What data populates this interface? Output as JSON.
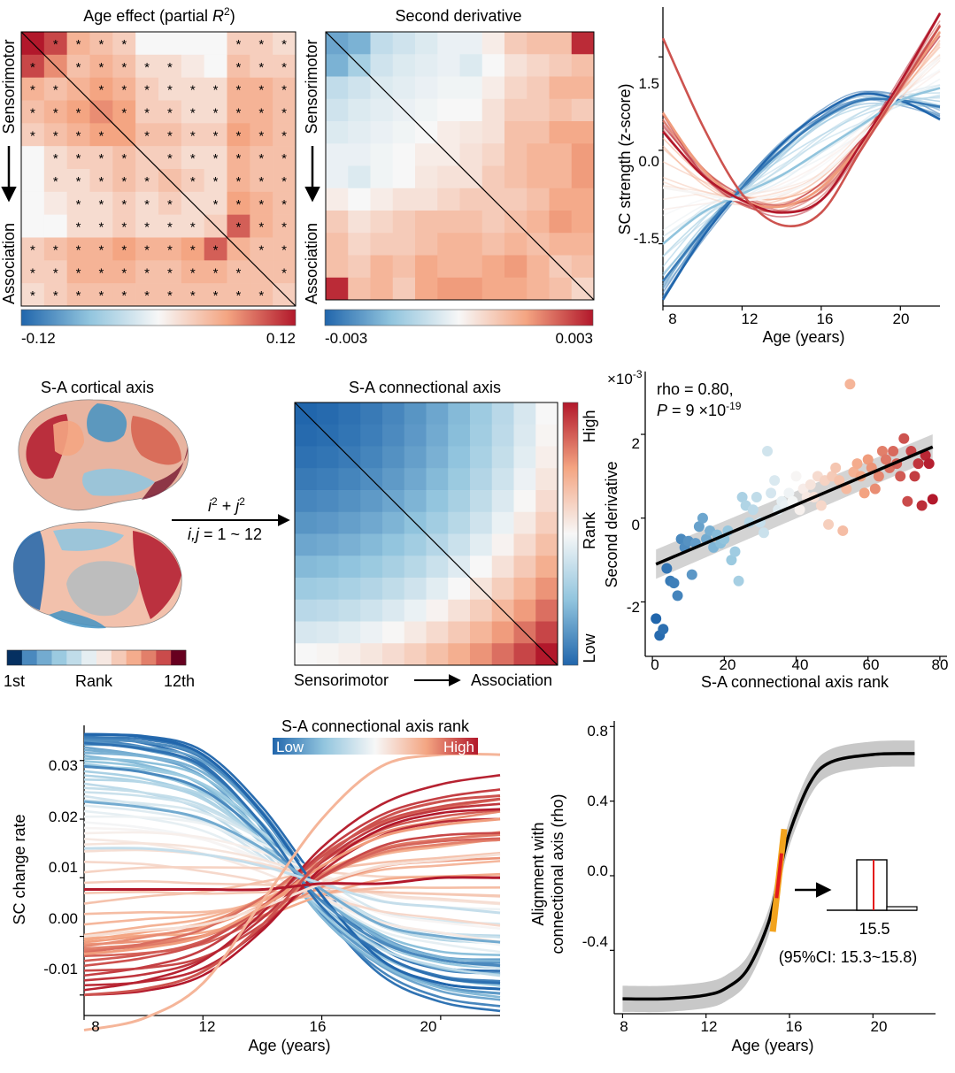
{
  "colors": {
    "blue_end": "#2166ac",
    "white_mid": "#f7f7f7",
    "red_end": "#b2182b",
    "dark_red": "#67001f",
    "fit_black": "#000000",
    "ci_gray": "#c8c8c8",
    "marker_red": "#e31a1c",
    "marker_orange": "#f2a31d"
  },
  "panel_a": {
    "title_prefix": "Age effect (partial ",
    "title_var": "R",
    "title_sup": "2",
    "title_suffix": ")",
    "row_label_top": "Sensorimotor",
    "row_label_bottom": "Association",
    "star": "*",
    "cbar_min": "-0.12",
    "cbar_max": "0.12"
  },
  "panel_b": {
    "title": "Second derivative",
    "row_label_top": "Sensorimotor",
    "row_label_bottom": "Association",
    "cbar_min": "-0.003",
    "cbar_max": "0.003"
  },
  "panel_c": {
    "ylabel": "SC strength (z-score)",
    "xlabel": "Age (years)",
    "yticks": [
      "1.5",
      "0.0",
      "-1.5"
    ],
    "xticks": [
      "8",
      "12",
      "16",
      "20"
    ]
  },
  "panel_d": {
    "title": "S-A cortical axis",
    "rank_first": "1st",
    "rank_mid": "Rank",
    "rank_last": "12th",
    "formula_i": "i",
    "formula_sup": "2",
    "formula_plus": " + ",
    "formula_j": "j",
    "formula_range_prefix": "i,j",
    "formula_range_suffix": " = 1 ~ 12"
  },
  "panel_e": {
    "title": "S-A connectional axis",
    "cbar_high": "High",
    "cbar_mid": "Rank",
    "cbar_low": "Low",
    "xlabel_left": "Sensorimotor",
    "xlabel_right": "Association"
  },
  "panel_f": {
    "exponent_base": "×10",
    "exponent_power": "-3",
    "rho_text": "rho = 0.80,",
    "p_var": "P",
    "p_value": " = 9 ×10",
    "p_exp": "-19",
    "ylabel": "Second derivative",
    "xlabel": "S-A connectional axis rank",
    "yticks": [
      "2",
      "0",
      "-2"
    ],
    "xticks": [
      "0",
      "20",
      "40",
      "60",
      "80"
    ]
  },
  "panel_g": {
    "legend_title": "S-A connectional axis rank",
    "legend_low": "Low",
    "legend_high": "High",
    "ylabel": "SC change rate",
    "xlabel": "Age (years)",
    "yticks": [
      "0.03",
      "0.02",
      "0.01",
      "0.00",
      "-0.01"
    ],
    "xticks": [
      "8",
      "12",
      "16",
      "20"
    ]
  },
  "panel_h": {
    "ylabel_line1": "Alignment with",
    "ylabel_line2": "connectional axis (rho)",
    "xlabel": "Age (years)",
    "yticks": [
      "0.8",
      "0.4",
      "0.0",
      "-0.4"
    ],
    "xticks": [
      "8",
      "12",
      "16",
      "20"
    ],
    "inset_value": "15.5",
    "inset_ci": "(95%CI: 15.3~15.8)"
  },
  "chart_data": [
    {
      "type": "heatmap",
      "panel": "age_effect",
      "colorbar_range": [
        -0.12,
        0.12
      ],
      "rows": 12,
      "cols": 12,
      "lower_triangle_partial_r2": [
        [
          0.12
        ],
        [
          0.1,
          0.07
        ],
        [
          0.05,
          0.04,
          0.05
        ],
        [
          0.04,
          0.05,
          0.06,
          0.07
        ],
        [
          0.03,
          0.04,
          0.05,
          0.06,
          0.06
        ],
        [
          0.0,
          0.02,
          0.03,
          0.03,
          0.04,
          0.03
        ],
        [
          0.0,
          0.02,
          0.02,
          0.03,
          0.04,
          0.03,
          0.04
        ],
        [
          0.0,
          0.01,
          0.02,
          0.02,
          0.03,
          0.02,
          0.03,
          0.02
        ],
        [
          0.0,
          0.0,
          0.02,
          0.02,
          0.03,
          0.02,
          0.02,
          0.02,
          0.03
        ],
        [
          0.03,
          0.04,
          0.05,
          0.05,
          0.06,
          0.05,
          0.05,
          0.06,
          0.09,
          0.05
        ],
        [
          0.03,
          0.03,
          0.05,
          0.05,
          0.05,
          0.04,
          0.04,
          0.05,
          0.05,
          0.04,
          0.04
        ],
        [
          0.02,
          0.03,
          0.04,
          0.04,
          0.04,
          0.04,
          0.04,
          0.04,
          0.04,
          0.04,
          0.04,
          0.03
        ]
      ]
    },
    {
      "type": "heatmap",
      "panel": "second_derivative",
      "colorbar_range": [
        -0.003,
        0.003
      ],
      "rows": 12,
      "cols": 12,
      "lower_triangle_values": [
        [
          -0.002
        ],
        [
          -0.0018,
          -0.0012
        ],
        [
          -0.0008,
          -0.0006,
          -0.0004
        ],
        [
          -0.0006,
          -0.0004,
          -0.0003,
          -0.0002
        ],
        [
          -0.0004,
          -0.0003,
          -0.0002,
          -0.0001,
          0.0
        ],
        [
          -0.0002,
          -0.0002,
          -0.0001,
          0.0,
          0.0002,
          0.0002
        ],
        [
          -0.0002,
          -0.0004,
          -0.0001,
          0.0,
          0.0003,
          0.0004,
          0.0004
        ],
        [
          0.0002,
          0.0,
          0.0002,
          0.0004,
          0.0004,
          0.0006,
          0.0008,
          0.0008
        ],
        [
          0.0008,
          0.0004,
          0.0006,
          0.0008,
          0.001,
          0.001,
          0.001,
          0.0008,
          0.001
        ],
        [
          0.001,
          0.0006,
          0.0008,
          0.0008,
          0.001,
          0.0012,
          0.0012,
          0.001,
          0.0012,
          0.001
        ],
        [
          0.001,
          0.0008,
          0.0012,
          0.001,
          0.0014,
          0.0012,
          0.0012,
          0.0014,
          0.0016,
          0.0012,
          0.0008
        ],
        [
          0.0028,
          0.001,
          0.0012,
          0.0008,
          0.0014,
          0.0016,
          0.0016,
          0.0014,
          0.0014,
          0.0012,
          0.001,
          0.0006
        ]
      ]
    },
    {
      "type": "line",
      "panel": "sc_strength_trajectories",
      "xlabel": "Age (years)",
      "ylabel": "SC strength (z-score)",
      "xlim": [
        8,
        22
      ],
      "ylim": [
        -2.5,
        2.3
      ],
      "x": [
        8,
        10,
        12,
        14,
        16,
        18,
        20,
        22
      ],
      "series": [
        {
          "rank": 1,
          "values": [
            -2.4,
            -1.4,
            -0.6,
            0.1,
            0.6,
            0.9,
            0.8,
            0.5
          ]
        },
        {
          "rank": 5,
          "values": [
            -2.1,
            -1.3,
            -0.6,
            0.0,
            0.5,
            0.8,
            0.8,
            0.7
          ]
        },
        {
          "rank": 20,
          "values": [
            -1.5,
            -1.0,
            -0.7,
            -0.4,
            0.0,
            0.4,
            0.8,
            1.0
          ]
        },
        {
          "rank": 40,
          "values": [
            -0.6,
            -0.7,
            -0.8,
            -0.7,
            -0.4,
            0.2,
            0.9,
            1.5
          ]
        },
        {
          "rank": 60,
          "values": [
            0.6,
            -0.3,
            -0.8,
            -0.9,
            -0.6,
            0.1,
            1.0,
            1.9
          ]
        },
        {
          "rank": 78,
          "values": [
            0.3,
            -0.4,
            -0.8,
            -1.0,
            -0.8,
            0.1,
            1.1,
            2.2
          ]
        },
        {
          "rank": 70,
          "values": [
            1.8,
            0.4,
            -0.7,
            -1.2,
            -1.0,
            0.0,
            1.0,
            2.0
          ]
        }
      ]
    },
    {
      "type": "heatmap",
      "panel": "sa_connectional_axis",
      "rows": 12,
      "cols": 12,
      "values_formula": "i^2 + j^2, i,j = 1~12 (rank)"
    },
    {
      "type": "scatter",
      "panel": "second_derivative_vs_rank",
      "xlabel": "S-A connectional axis rank",
      "ylabel": "Second derivative",
      "xlim": [
        -2,
        82
      ],
      "ylim": [
        -3.3,
        3.5
      ],
      "y_scale": "×10^-3",
      "rho": 0.8,
      "p": "9e-19",
      "fit_line": {
        "x": [
          1,
          78
        ],
        "y": [
          -1.1,
          1.7
        ]
      },
      "points": [
        [
          1,
          -2.4
        ],
        [
          2,
          -2.8
        ],
        [
          3,
          -2.65
        ],
        [
          4,
          -1.2
        ],
        [
          5,
          -1.5
        ],
        [
          6,
          -1.55
        ],
        [
          7,
          -1.85
        ],
        [
          8,
          -0.5
        ],
        [
          9,
          -0.7
        ],
        [
          10,
          -0.55
        ],
        [
          11,
          -1.35
        ],
        [
          12,
          -0.6
        ],
        [
          13,
          -0.2
        ],
        [
          14,
          0.0
        ],
        [
          15,
          -0.5
        ],
        [
          16,
          -0.3
        ],
        [
          17,
          -0.7
        ],
        [
          18,
          -0.4
        ],
        [
          19,
          -0.6
        ],
        [
          20,
          -0.5
        ],
        [
          21,
          -0.3
        ],
        [
          22,
          -1.0
        ],
        [
          23,
          -0.8
        ],
        [
          24,
          -1.5
        ],
        [
          25,
          0.5
        ],
        [
          26,
          0.3
        ],
        [
          27,
          -0.1
        ],
        [
          28,
          0.2
        ],
        [
          29,
          0.5
        ],
        [
          30,
          -0.1
        ],
        [
          31,
          -0.35
        ],
        [
          32,
          1.6
        ],
        [
          33,
          0.6
        ],
        [
          34,
          0.9
        ],
        [
          35,
          0.2
        ],
        [
          36,
          0.4
        ],
        [
          37,
          0.3
        ],
        [
          38,
          0.6
        ],
        [
          39,
          0.4
        ],
        [
          40,
          1.0
        ],
        [
          41,
          0.2
        ],
        [
          42,
          0.7
        ],
        [
          43,
          0.5
        ],
        [
          44,
          0.8
        ],
        [
          45,
          0.5
        ],
        [
          46,
          1.0
        ],
        [
          47,
          0.3
        ],
        [
          48,
          0.9
        ],
        [
          49,
          -0.15
        ],
        [
          50,
          1.0
        ],
        [
          51,
          1.2
        ],
        [
          52,
          0.9
        ],
        [
          53,
          -0.3
        ],
        [
          54,
          0.7
        ],
        [
          55,
          3.2
        ],
        [
          56,
          1.1
        ],
        [
          57,
          1.3
        ],
        [
          58,
          1.0
        ],
        [
          59,
          0.6
        ],
        [
          60,
          1.4
        ],
        [
          61,
          1.2
        ],
        [
          62,
          0.7
        ],
        [
          63,
          1.0
        ],
        [
          64,
          1.6
        ],
        [
          65,
          1.4
        ],
        [
          66,
          1.2
        ],
        [
          67,
          1.6
        ],
        [
          68,
          1.3
        ],
        [
          69,
          1.0
        ],
        [
          70,
          1.9
        ],
        [
          71,
          0.4
        ],
        [
          72,
          1.6
        ],
        [
          73,
          1.0
        ],
        [
          74,
          1.3
        ],
        [
          75,
          0.3
        ],
        [
          76,
          1.5
        ],
        [
          77,
          1.3
        ],
        [
          78,
          0.45
        ]
      ]
    },
    {
      "type": "line",
      "panel": "sc_change_rate",
      "xlabel": "Age (years)",
      "ylabel": "SC change rate",
      "xlim": [
        8,
        22
      ],
      "ylim": [
        -0.0135,
        0.036
      ],
      "x": [
        8,
        10,
        12,
        14,
        16,
        18,
        20,
        22
      ],
      "series": [
        {
          "rank": 1,
          "values": [
            0.0345,
            0.034,
            0.031,
            0.021,
            0.007,
            -0.004,
            -0.008,
            -0.009
          ]
        },
        {
          "rank": 3,
          "values": [
            0.033,
            0.032,
            0.029,
            0.019,
            0.005,
            -0.003,
            -0.007,
            -0.008
          ]
        },
        {
          "rank": 8,
          "values": [
            0.029,
            0.028,
            0.025,
            0.017,
            0.006,
            -0.001,
            -0.004,
            -0.005
          ]
        },
        {
          "rank": 15,
          "values": [
            0.023,
            0.022,
            0.02,
            0.015,
            0.008,
            0.002,
            0.0,
            -0.001
          ]
        },
        {
          "rank": 30,
          "values": [
            0.015,
            0.015,
            0.014,
            0.012,
            0.009,
            0.006,
            0.005,
            0.004
          ]
        },
        {
          "rank": 45,
          "values": [
            0.0,
            0.001,
            0.002,
            0.005,
            0.009,
            0.012,
            0.013,
            0.014
          ]
        },
        {
          "rank": 60,
          "values": [
            -0.003,
            -0.002,
            0.0,
            0.005,
            0.012,
            0.017,
            0.019,
            0.02
          ]
        },
        {
          "rank": 70,
          "values": [
            -0.01,
            -0.009,
            -0.006,
            0.002,
            0.013,
            0.02,
            0.023,
            0.024
          ]
        },
        {
          "rank": 78,
          "values": [
            0.008,
            0.008,
            0.008,
            0.008,
            0.009,
            0.009,
            0.01,
            0.01
          ]
        },
        {
          "rank": 55,
          "values": [
            -0.016,
            -0.014,
            -0.008,
            0.006,
            0.02,
            0.029,
            0.031,
            0.031
          ]
        }
      ]
    },
    {
      "type": "line",
      "panel": "alignment_with_connectional_axis",
      "xlabel": "Age (years)",
      "ylabel": "Alignment with connectional axis (rho)",
      "xlim": [
        7.6,
        23.0
      ],
      "ylim": [
        -0.74,
        0.83
      ],
      "x": [
        8,
        10,
        12,
        13,
        14,
        15,
        15.5,
        16,
        17,
        18,
        20,
        22
      ],
      "values": [
        -0.66,
        -0.66,
        -0.64,
        -0.6,
        -0.5,
        -0.25,
        0.0,
        0.23,
        0.5,
        0.61,
        0.65,
        0.655
      ],
      "ci_halfwidth": 0.07,
      "crossing_age": 15.5,
      "crossing_ci": [
        15.3,
        15.8
      ]
    }
  ]
}
